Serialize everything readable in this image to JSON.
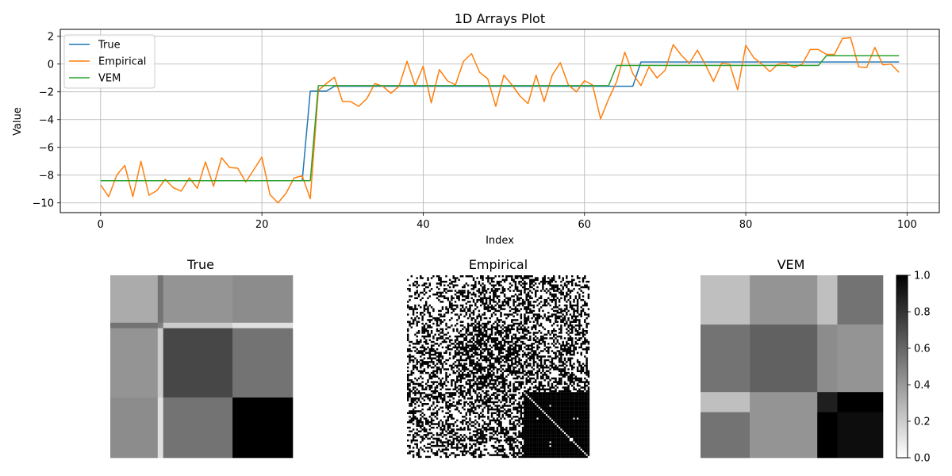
{
  "chart_data": [
    {
      "type": "line",
      "title": "1D Arrays Plot",
      "xlabel": "Index",
      "ylabel": "Value",
      "xlim": [
        -5,
        104
      ],
      "ylim": [
        -10.7,
        2.5
      ],
      "xticks": [
        0,
        20,
        40,
        60,
        80,
        100
      ],
      "yticks": [
        -10,
        -8,
        -6,
        -4,
        -2,
        0,
        2
      ],
      "xtick_labels": [
        "0",
        "20",
        "40",
        "60",
        "80",
        "100"
      ],
      "ytick_labels": [
        "−10",
        "−8",
        "−6",
        "−4",
        "−2",
        "0",
        "2"
      ],
      "grid": true,
      "legend_position": "upper-left",
      "series": [
        {
          "name": "True",
          "color": "#1f77b4",
          "x": [
            0,
            1,
            2,
            3,
            4,
            5,
            6,
            7,
            8,
            9,
            10,
            11,
            12,
            13,
            14,
            15,
            16,
            17,
            18,
            19,
            20,
            21,
            22,
            23,
            24,
            25,
            26,
            27,
            28,
            29,
            30,
            31,
            32,
            33,
            34,
            35,
            36,
            37,
            38,
            39,
            40,
            41,
            42,
            43,
            44,
            45,
            46,
            47,
            48,
            49,
            50,
            51,
            52,
            53,
            54,
            55,
            56,
            57,
            58,
            59,
            60,
            61,
            62,
            63,
            64,
            65,
            66,
            67,
            68,
            69,
            70,
            71,
            72,
            73,
            74,
            75,
            76,
            77,
            78,
            79,
            80,
            81,
            82,
            83,
            84,
            85,
            86,
            87,
            88,
            89,
            90,
            91,
            92,
            93,
            94,
            95,
            96,
            97,
            98,
            99
          ],
          "values": [
            -8.4,
            -8.4,
            -8.4,
            -8.4,
            -8.4,
            -8.4,
            -8.4,
            -8.4,
            -8.4,
            -8.4,
            -8.4,
            -8.4,
            -8.4,
            -8.4,
            -8.4,
            -8.4,
            -8.4,
            -8.4,
            -8.4,
            -8.4,
            -8.4,
            -8.4,
            -8.4,
            -8.4,
            -8.4,
            -8.4,
            -1.95,
            -1.95,
            -1.95,
            -1.6,
            -1.6,
            -1.6,
            -1.6,
            -1.6,
            -1.6,
            -1.6,
            -1.6,
            -1.6,
            -1.6,
            -1.6,
            -1.6,
            -1.6,
            -1.6,
            -1.6,
            -1.6,
            -1.6,
            -1.6,
            -1.6,
            -1.6,
            -1.6,
            -1.6,
            -1.6,
            -1.6,
            -1.6,
            -1.6,
            -1.6,
            -1.6,
            -1.6,
            -1.6,
            -1.6,
            -1.6,
            -1.6,
            -1.6,
            -1.6,
            -1.6,
            -1.6,
            -1.6,
            0.15,
            0.15,
            0.15,
            0.15,
            0.15,
            0.15,
            0.15,
            0.15,
            0.15,
            0.15,
            0.15,
            0.15,
            0.15,
            0.15,
            0.15,
            0.15,
            0.15,
            0.15,
            0.15,
            0.15,
            0.15,
            0.15,
            0.15,
            0.15,
            0.15,
            0.15,
            0.15,
            0.15,
            0.15,
            0.15,
            0.15,
            0.15,
            0.15
          ]
        },
        {
          "name": "Empirical",
          "color": "#ff7f0e",
          "x": [
            0,
            1,
            2,
            3,
            4,
            5,
            6,
            7,
            8,
            9,
            10,
            11,
            12,
            13,
            14,
            15,
            16,
            17,
            18,
            19,
            20,
            21,
            22,
            23,
            24,
            25,
            26,
            27,
            28,
            29,
            30,
            31,
            32,
            33,
            34,
            35,
            36,
            37,
            38,
            39,
            40,
            41,
            42,
            43,
            44,
            45,
            46,
            47,
            48,
            49,
            50,
            51,
            52,
            53,
            54,
            55,
            56,
            57,
            58,
            59,
            60,
            61,
            62,
            63,
            64,
            65,
            66,
            67,
            68,
            69,
            70,
            71,
            72,
            73,
            74,
            75,
            76,
            77,
            78,
            79,
            80,
            81,
            82,
            83,
            84,
            85,
            86,
            87,
            88,
            89,
            90,
            91,
            92,
            93,
            94,
            95,
            96,
            97,
            98,
            99
          ],
          "values": [
            -8.7,
            -9.55,
            -8.0,
            -7.3,
            -9.55,
            -7.0,
            -9.45,
            -9.1,
            -8.3,
            -8.9,
            -9.15,
            -8.2,
            -8.95,
            -7.05,
            -8.8,
            -6.75,
            -7.45,
            -7.5,
            -8.5,
            -7.6,
            -6.7,
            -9.4,
            -10.0,
            -9.3,
            -8.2,
            -8.05,
            -9.7,
            -1.9,
            -1.4,
            -0.95,
            -2.7,
            -2.7,
            -3.05,
            -2.5,
            -1.4,
            -1.6,
            -2.1,
            -1.6,
            0.2,
            -1.55,
            -0.15,
            -2.8,
            -0.4,
            -1.2,
            -1.5,
            0.2,
            0.75,
            -0.6,
            -1.05,
            -3.05,
            -0.8,
            -1.5,
            -2.3,
            -2.85,
            -0.8,
            -2.7,
            -0.8,
            0.1,
            -1.5,
            -2.0,
            -1.2,
            -1.5,
            -3.95,
            -2.5,
            -1.25,
            0.85,
            -0.7,
            -1.55,
            -0.2,
            -1.0,
            -0.45,
            1.4,
            0.65,
            0.05,
            1.0,
            -0.05,
            -1.25,
            0.05,
            0.0,
            -1.85,
            1.35,
            0.45,
            0.0,
            -0.55,
            0.0,
            0.05,
            -0.25,
            0.0,
            1.05,
            1.05,
            0.7,
            0.7,
            1.85,
            1.9,
            -0.2,
            -0.25,
            1.2,
            -0.05,
            0.0,
            -0.6
          ]
        },
        {
          "name": "VEM",
          "color": "#2ca02c",
          "x": [
            0,
            1,
            2,
            3,
            4,
            5,
            6,
            7,
            8,
            9,
            10,
            11,
            12,
            13,
            14,
            15,
            16,
            17,
            18,
            19,
            20,
            21,
            22,
            23,
            24,
            25,
            26,
            27,
            28,
            29,
            30,
            31,
            32,
            33,
            34,
            35,
            36,
            37,
            38,
            39,
            40,
            41,
            42,
            43,
            44,
            45,
            46,
            47,
            48,
            49,
            50,
            51,
            52,
            53,
            54,
            55,
            56,
            57,
            58,
            59,
            60,
            61,
            62,
            63,
            64,
            65,
            66,
            67,
            68,
            69,
            70,
            71,
            72,
            73,
            74,
            75,
            76,
            77,
            78,
            79,
            80,
            81,
            82,
            83,
            84,
            85,
            86,
            87,
            88,
            89,
            90,
            91,
            92,
            93,
            94,
            95,
            96,
            97,
            98,
            99
          ],
          "values": [
            -8.4,
            -8.4,
            -8.4,
            -8.4,
            -8.4,
            -8.4,
            -8.4,
            -8.4,
            -8.4,
            -8.4,
            -8.4,
            -8.4,
            -8.4,
            -8.4,
            -8.4,
            -8.4,
            -8.4,
            -8.4,
            -8.4,
            -8.4,
            -8.4,
            -8.4,
            -8.4,
            -8.4,
            -8.4,
            -8.4,
            -8.4,
            -1.55,
            -1.55,
            -1.55,
            -1.55,
            -1.55,
            -1.55,
            -1.55,
            -1.55,
            -1.55,
            -1.55,
            -1.55,
            -1.55,
            -1.55,
            -1.55,
            -1.55,
            -1.55,
            -1.55,
            -1.55,
            -1.55,
            -1.55,
            -1.55,
            -1.55,
            -1.55,
            -1.55,
            -1.55,
            -1.55,
            -1.55,
            -1.55,
            -1.55,
            -1.55,
            -1.55,
            -1.55,
            -1.55,
            -1.55,
            -1.55,
            -1.55,
            -1.55,
            -0.1,
            -0.1,
            -0.1,
            -0.1,
            -0.1,
            -0.1,
            -0.1,
            -0.1,
            -0.1,
            -0.1,
            -0.1,
            -0.1,
            -0.1,
            -0.1,
            -0.1,
            -0.1,
            -0.1,
            -0.1,
            -0.1,
            -0.1,
            -0.1,
            -0.1,
            -0.1,
            -0.1,
            -0.1,
            -0.1,
            0.6,
            0.6,
            0.6,
            0.6,
            0.6,
            0.6,
            0.6,
            0.6,
            0.6,
            0.6
          ]
        }
      ]
    },
    {
      "type": "heatmap",
      "title": "True",
      "colormap": "gray_r",
      "vmin": 0,
      "vmax": 1,
      "size": 100,
      "blocks": [
        {
          "rows": [
            0,
            26
          ],
          "cols": [
            0,
            26
          ],
          "value": 0.33
        },
        {
          "rows": [
            0,
            26
          ],
          "cols": [
            26,
            29
          ],
          "value": 0.55
        },
        {
          "rows": [
            0,
            26
          ],
          "cols": [
            29,
            67
          ],
          "value": 0.42
        },
        {
          "rows": [
            0,
            26
          ],
          "cols": [
            67,
            100
          ],
          "value": 0.45
        },
        {
          "rows": [
            26,
            29
          ],
          "cols": [
            0,
            26
          ],
          "value": 0.55
        },
        {
          "rows": [
            26,
            29
          ],
          "cols": [
            26,
            29
          ],
          "value": 0.5
        },
        {
          "rows": [
            26,
            29
          ],
          "cols": [
            29,
            67
          ],
          "value": 0.2
        },
        {
          "rows": [
            26,
            29
          ],
          "cols": [
            67,
            100
          ],
          "value": 0.12
        },
        {
          "rows": [
            29,
            67
          ],
          "cols": [
            0,
            26
          ],
          "value": 0.42
        },
        {
          "rows": [
            29,
            67
          ],
          "cols": [
            26,
            29
          ],
          "value": 0.2
        },
        {
          "rows": [
            29,
            67
          ],
          "cols": [
            29,
            67
          ],
          "value": 0.72
        },
        {
          "rows": [
            29,
            67
          ],
          "cols": [
            67,
            100
          ],
          "value": 0.55
        },
        {
          "rows": [
            67,
            100
          ],
          "cols": [
            0,
            26
          ],
          "value": 0.45
        },
        {
          "rows": [
            67,
            100
          ],
          "cols": [
            26,
            29
          ],
          "value": 0.12
        },
        {
          "rows": [
            67,
            100
          ],
          "cols": [
            29,
            67
          ],
          "value": 0.55
        },
        {
          "rows": [
            67,
            100
          ],
          "cols": [
            67,
            100
          ],
          "value": 1.0
        }
      ]
    },
    {
      "type": "heatmap",
      "title": "Empirical",
      "colormap": "gray_r",
      "vmin": 0,
      "vmax": 1,
      "size": 100,
      "description_values": "binary adjacency matrix (0/1), block densities: inner block 0-27 ~0.33, 27-64 ~0.55, 64-100 ~1.0 with white diagonal",
      "block_edges": [
        0,
        27,
        64,
        100
      ],
      "densities": [
        [
          0.33,
          0.45,
          0.42
        ],
        [
          0.45,
          0.6,
          0.5
        ],
        [
          0.42,
          0.5,
          0.99
        ]
      ]
    },
    {
      "type": "heatmap",
      "title": "VEM",
      "colormap": "gray_r",
      "vmin": 0,
      "vmax": 1,
      "size": 100,
      "blocks": [
        {
          "rows": [
            0,
            27
          ],
          "cols": [
            0,
            27
          ],
          "value": 0.25
        },
        {
          "rows": [
            0,
            27
          ],
          "cols": [
            27,
            64
          ],
          "value": 0.42
        },
        {
          "rows": [
            0,
            27
          ],
          "cols": [
            64,
            75
          ],
          "value": 0.25
        },
        {
          "rows": [
            0,
            27
          ],
          "cols": [
            75,
            100
          ],
          "value": 0.55
        },
        {
          "rows": [
            27,
            64
          ],
          "cols": [
            0,
            27
          ],
          "value": 0.55
        },
        {
          "rows": [
            27,
            64
          ],
          "cols": [
            27,
            64
          ],
          "value": 0.62
        },
        {
          "rows": [
            27,
            64
          ],
          "cols": [
            64,
            75
          ],
          "value": 0.45
        },
        {
          "rows": [
            27,
            64
          ],
          "cols": [
            75,
            100
          ],
          "value": 0.42
        },
        {
          "rows": [
            64,
            75
          ],
          "cols": [
            0,
            27
          ],
          "value": 0.25
        },
        {
          "rows": [
            64,
            75
          ],
          "cols": [
            27,
            64
          ],
          "value": 0.42
        },
        {
          "rows": [
            64,
            75
          ],
          "cols": [
            64,
            75
          ],
          "value": 0.88
        },
        {
          "rows": [
            64,
            75
          ],
          "cols": [
            75,
            100
          ],
          "value": 1.0
        },
        {
          "rows": [
            75,
            100
          ],
          "cols": [
            0,
            27
          ],
          "value": 0.55
        },
        {
          "rows": [
            75,
            100
          ],
          "cols": [
            27,
            64
          ],
          "value": 0.42
        },
        {
          "rows": [
            75,
            100
          ],
          "cols": [
            64,
            75
          ],
          "value": 1.0
        },
        {
          "rows": [
            75,
            100
          ],
          "cols": [
            75,
            100
          ],
          "value": 0.95
        }
      ],
      "colorbar": {
        "ticks": [
          0.0,
          0.2,
          0.4,
          0.6,
          0.8,
          1.0
        ],
        "tick_labels": [
          "0.0",
          "0.2",
          "0.4",
          "0.6",
          "0.8",
          "1.0"
        ]
      }
    }
  ]
}
